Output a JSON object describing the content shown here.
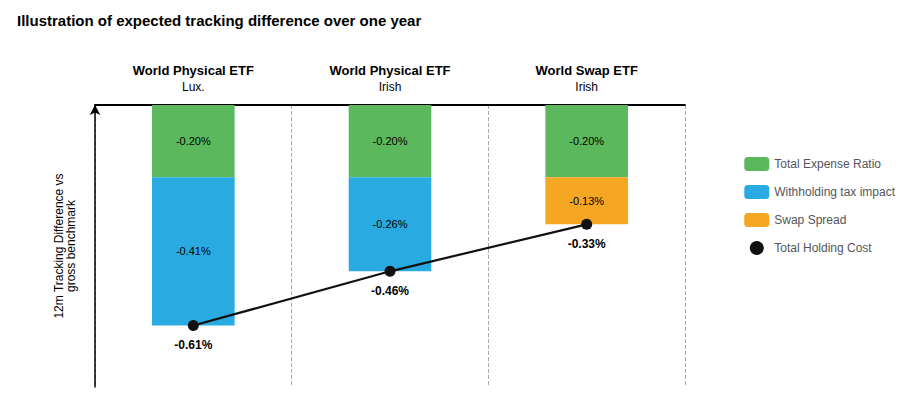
{
  "chart_data": {
    "type": "bar",
    "stacked": true,
    "title": "Illustration of expected tracking difference over one year",
    "categories": [
      "World Physical ETF\nLux.",
      "World Physical ETF\nIrish",
      "World Swap ETF\nIrish"
    ],
    "ylabel": "12m Tracking Difference vs\ngross benchmark",
    "ylim": [
      -0.78,
      0.0
    ],
    "tick_labels": "x",
    "grid": false,
    "legend": "right",
    "data_labels": true,
    "series": [
      {
        "name": "Total Expense Ratio",
        "color": "#5cb85c",
        "values": [
          -0.2,
          -0.2,
          -0.2
        ],
        "value_labels": [
          "-0.20%",
          "-0.20%",
          "-0.20%"
        ]
      },
      {
        "name": "Withholding tax impact",
        "color": "#29abe2",
        "values": [
          -0.41,
          -0.26,
          null
        ],
        "value_labels": [
          "-0.41%",
          "-0.26%",
          null
        ]
      },
      {
        "name": "Swap Spread",
        "color": "#f5a623",
        "values": [
          null,
          null,
          -0.13
        ],
        "value_labels": [
          null,
          null,
          "-0.13%"
        ]
      },
      {
        "name": "Total Holding Cost",
        "type": "line",
        "marker": "circle",
        "color": "#111111",
        "values": [
          -0.61,
          -0.46,
          -0.33
        ],
        "value_labels": [
          "-0.61%",
          "-0.46%",
          "-0.33%"
        ]
      }
    ]
  }
}
